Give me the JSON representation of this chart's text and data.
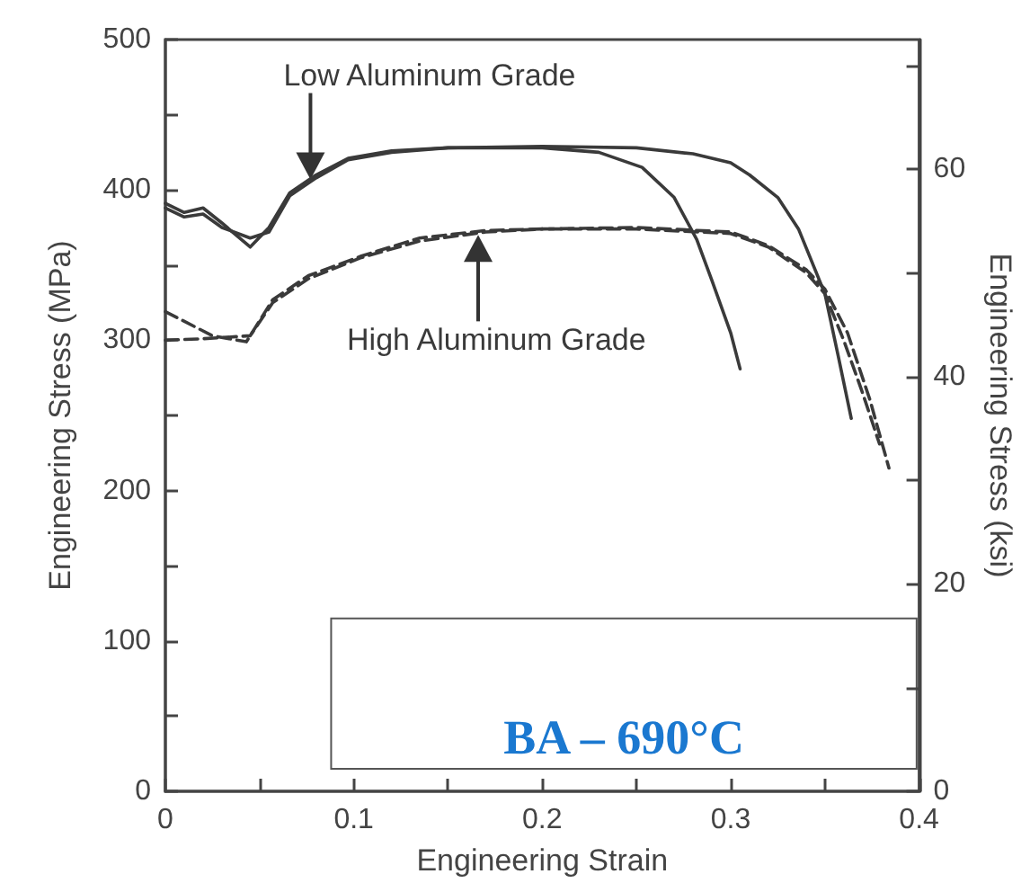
{
  "chart_data": {
    "type": "line",
    "xlabel": "Engineering Strain",
    "ylabel": "Engineering Stress (MPa)",
    "y2label": "Engineering Stress (ksi)",
    "xlim": [
      0,
      0.4
    ],
    "xticks": [
      0,
      {
        "value": 0.05,
        "label": null
      },
      0.1,
      {
        "value": 0.15,
        "label": null
      },
      0.2,
      {
        "value": 0.25,
        "label": null
      },
      0.3,
      {
        "value": 0.35,
        "label": null
      },
      0.4
    ],
    "ylim": [
      0,
      500
    ],
    "yticks": [
      0,
      {
        "value": 50,
        "label": null
      },
      100,
      {
        "value": 150,
        "label": null
      },
      200,
      {
        "value": 250,
        "label": null
      },
      300,
      {
        "value": 350,
        "label": null
      },
      400,
      {
        "value": 450,
        "label": null
      },
      500
    ],
    "y2lim": [
      0,
      72.52
    ],
    "y2ticks": [
      0,
      {
        "value": 10,
        "label": null
      },
      20,
      {
        "value": 30,
        "label": null
      },
      40,
      {
        "value": 50,
        "label": null
      },
      60,
      {
        "value": 70,
        "label": null
      }
    ],
    "series": [
      {
        "color": "#3a3a3a",
        "line_style": "solid",
        "x": [
          0,
          0.01,
          0.02,
          0.03,
          0.045,
          0.055,
          0.066,
          0.08,
          0.097,
          0.12,
          0.15,
          0.2,
          0.23,
          0.253,
          0.27,
          0.282,
          0.29,
          0.3,
          0.305
        ],
        "values": [
          391,
          385,
          388,
          378,
          362,
          375,
          398,
          410,
          421,
          426,
          428,
          428,
          425,
          415,
          395,
          367,
          340,
          305,
          281
        ]
      },
      {
        "color": "#3a3a3a",
        "line_style": "solid",
        "x": [
          0,
          0.01,
          0.02,
          0.03,
          0.045,
          0.055,
          0.066,
          0.08,
          0.097,
          0.12,
          0.15,
          0.2,
          0.25,
          0.28,
          0.3,
          0.31,
          0.325,
          0.336,
          0.35,
          0.357,
          0.364
        ],
        "values": [
          388,
          382,
          384,
          375,
          368,
          372,
          396,
          408,
          420,
          425,
          428,
          429,
          428,
          424,
          418,
          410,
          395,
          374,
          331,
          290,
          248
        ]
      },
      {
        "color": "#3a3a3a",
        "line_style": "dashed",
        "x": [
          0,
          0.025,
          0.043,
          0.057,
          0.076,
          0.104,
          0.135,
          0.17,
          0.2,
          0.25,
          0.3,
          0.32,
          0.34,
          0.35,
          0.36,
          0.37,
          0.379
        ],
        "values": [
          319,
          303,
          299,
          327,
          343,
          356,
          368,
          373,
          374,
          374,
          371,
          362,
          345,
          331,
          300,
          265,
          231
        ]
      },
      {
        "color": "#3a3a3a",
        "line_style": "dashed",
        "x": [
          0,
          0.02,
          0.045,
          0.057,
          0.076,
          0.104,
          0.135,
          0.17,
          0.2,
          0.25,
          0.3,
          0.32,
          0.34,
          0.35,
          0.362,
          0.374,
          0.384
        ],
        "values": [
          300,
          301,
          303,
          325,
          341,
          355,
          366,
          372,
          374,
          375,
          372,
          363,
          347,
          334,
          305,
          260,
          215
        ]
      }
    ],
    "annotations": [
      {
        "text": "Low Aluminum Grade",
        "x": 0.077,
        "y": 407
      },
      {
        "text": "High Aluminum Grade",
        "x": 0.166,
        "y": 370
      },
      "BA – 690°C"
    ],
    "grid": false,
    "marker": "none"
  }
}
